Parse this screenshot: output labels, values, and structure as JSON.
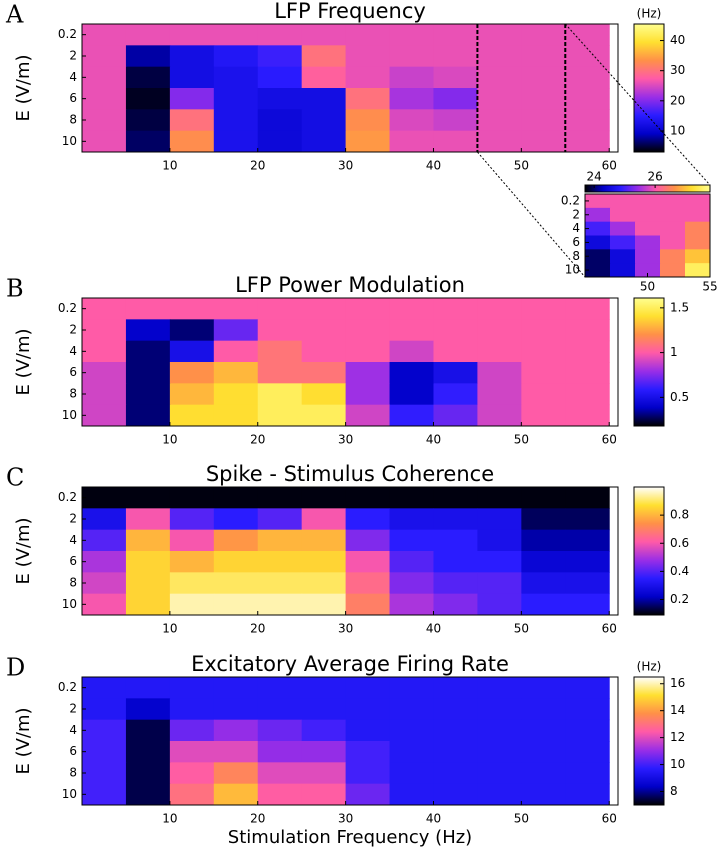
{
  "chart_data": [
    {
      "type": "heatmap",
      "panel": "A",
      "title": "LFP Frequency",
      "y_label": "E (V/m)",
      "x": [
        2.5,
        7.5,
        12.5,
        17.5,
        22.5,
        27.5,
        32.5,
        37.5,
        42.5,
        47.5,
        52.5,
        57.5
      ],
      "rows": [
        0.2,
        2,
        4,
        6,
        8,
        10
      ],
      "z": [
        [
          26,
          26,
          26,
          26,
          26,
          26,
          26,
          26,
          26,
          26,
          26,
          26
        ],
        [
          26,
          8,
          12,
          14,
          16,
          30,
          26,
          26,
          26,
          26,
          26,
          26
        ],
        [
          26,
          5,
          12,
          13,
          15,
          28,
          26,
          24,
          25,
          26,
          26,
          26
        ],
        [
          26,
          4,
          20,
          13,
          12,
          12,
          30,
          22,
          20,
          26,
          26,
          26
        ],
        [
          26,
          5,
          30,
          13,
          11,
          12,
          33,
          25,
          24,
          26,
          26,
          26
        ],
        [
          26,
          6,
          33,
          13,
          11,
          12,
          34,
          26,
          26,
          26,
          26,
          26
        ]
      ],
      "xlim": [
        0,
        61
      ],
      "xticks": [
        10,
        20,
        30,
        40,
        50,
        60
      ],
      "clim": [
        3,
        45.5
      ],
      "cticks": [
        10,
        20,
        30,
        40
      ],
      "colorbar_label": "(Hz)",
      "colormap": [
        "#000000",
        "#0000c8",
        "#2a1cff",
        "#9a2ee6",
        "#ff5aa8",
        "#ff9048",
        "#ffe030",
        "#ffff90"
      ],
      "inset": {
        "x": [
          46,
          48,
          50,
          52,
          54
        ],
        "rows": [
          0.2,
          2,
          4,
          6,
          8,
          10
        ],
        "z": [
          [
            26,
            26,
            26,
            26,
            26
          ],
          [
            25.5,
            26,
            26,
            26,
            26
          ],
          [
            25,
            25.5,
            26,
            26,
            26.5
          ],
          [
            24.5,
            25,
            25.5,
            26,
            26.5
          ],
          [
            24,
            24.5,
            25.5,
            26.5,
            27
          ],
          [
            24,
            24.5,
            25.5,
            26.5,
            27.5
          ]
        ],
        "xlim": [
          45,
          55
        ],
        "xticks": [
          50,
          55
        ],
        "clim": [
          23.7,
          27.8
        ],
        "cticks": [
          24,
          26
        ]
      }
    },
    {
      "type": "heatmap",
      "panel": "B",
      "title": "LFP Power Modulation",
      "y_label": "E (V/m)",
      "x": [
        2.5,
        7.5,
        12.5,
        17.5,
        22.5,
        27.5,
        32.5,
        37.5,
        42.5,
        47.5,
        52.5,
        57.5
      ],
      "rows": [
        0.2,
        2,
        4,
        6,
        8,
        10
      ],
      "z": [
        [
          1,
          1,
          1,
          1,
          1,
          1,
          1,
          1,
          1,
          1,
          1,
          1
        ],
        [
          1,
          0.4,
          0.3,
          0.7,
          1,
          1,
          1,
          1,
          1,
          1,
          1,
          1
        ],
        [
          1,
          0.3,
          0.5,
          1,
          1.1,
          1,
          1,
          0.9,
          1,
          1,
          1,
          1
        ],
        [
          0.9,
          0.3,
          1.2,
          1.3,
          1.1,
          1.1,
          0.8,
          0.4,
          0.5,
          0.9,
          1,
          1
        ],
        [
          0.9,
          0.3,
          1.3,
          1.4,
          1.5,
          1.4,
          0.8,
          0.4,
          0.6,
          0.9,
          1,
          1
        ],
        [
          0.9,
          0.3,
          1.4,
          1.4,
          1.5,
          1.5,
          0.9,
          0.6,
          0.7,
          0.9,
          1,
          1
        ]
      ],
      "xlim": [
        0,
        61
      ],
      "xticks": [
        10,
        20,
        30,
        40,
        50,
        60
      ],
      "clim": [
        0.18,
        1.61
      ],
      "cticks": [
        0.5,
        1,
        1.5
      ],
      "colormap": [
        "#000000",
        "#0000c8",
        "#2a1cff",
        "#9a2ee6",
        "#ff5aa8",
        "#ff9048",
        "#ffe030",
        "#ffff90"
      ]
    },
    {
      "type": "heatmap",
      "panel": "C",
      "title": "Spike - Stimulus Coherence",
      "y_label": "E (V/m)",
      "x": [
        2.5,
        7.5,
        12.5,
        17.5,
        22.5,
        27.5,
        32.5,
        37.5,
        42.5,
        47.5,
        52.5,
        57.5
      ],
      "rows": [
        0.2,
        2,
        4,
        6,
        8,
        10
      ],
      "z": [
        [
          0.1,
          0.1,
          0.1,
          0.1,
          0.1,
          0.1,
          0.1,
          0.1,
          0.1,
          0.1,
          0.1,
          0.1
        ],
        [
          0.3,
          0.6,
          0.4,
          0.35,
          0.4,
          0.6,
          0.35,
          0.3,
          0.3,
          0.3,
          0.15,
          0.15
        ],
        [
          0.4,
          0.8,
          0.6,
          0.75,
          0.8,
          0.8,
          0.45,
          0.35,
          0.35,
          0.3,
          0.2,
          0.2
        ],
        [
          0.5,
          0.85,
          0.8,
          0.85,
          0.85,
          0.85,
          0.6,
          0.4,
          0.35,
          0.35,
          0.25,
          0.25
        ],
        [
          0.55,
          0.85,
          0.9,
          0.9,
          0.9,
          0.9,
          0.65,
          0.45,
          0.4,
          0.4,
          0.3,
          0.3
        ],
        [
          0.6,
          0.85,
          0.95,
          0.95,
          0.95,
          0.95,
          0.7,
          0.5,
          0.45,
          0.4,
          0.35,
          0.35
        ]
      ],
      "xlim": [
        0,
        61
      ],
      "xticks": [
        10,
        20,
        30,
        40,
        50,
        60
      ],
      "clim": [
        0.09,
        1
      ],
      "cticks": [
        0.2,
        0.4,
        0.6,
        0.8
      ],
      "colormap": [
        "#000000",
        "#0000c8",
        "#2a1cff",
        "#9a2ee6",
        "#ff5aa8",
        "#ff9048",
        "#ffe030",
        "#ffffff"
      ]
    },
    {
      "type": "heatmap",
      "panel": "D",
      "title": "Excitatory Average Firing Rate",
      "y_label": "E (V/m)",
      "x_label": "Stimulation Frequency (Hz)",
      "x": [
        2.5,
        7.5,
        12.5,
        17.5,
        22.5,
        27.5,
        32.5,
        37.5,
        42.5,
        47.5,
        52.5,
        57.5
      ],
      "rows": [
        0.2,
        2,
        4,
        6,
        8,
        10
      ],
      "z": [
        [
          9.5,
          9.5,
          9.5,
          9.5,
          9.5,
          9.5,
          9.5,
          9.5,
          9.5,
          9.5,
          9.5,
          9.5
        ],
        [
          9.5,
          8.5,
          9.5,
          9.5,
          9.5,
          9.5,
          9.5,
          9.5,
          9.5,
          9.5,
          9.5,
          9.5
        ],
        [
          10,
          7.5,
          10.5,
          11,
          10.5,
          10,
          9.5,
          9.5,
          9.5,
          9.5,
          9.5,
          9.5
        ],
        [
          10,
          7.5,
          12,
          12,
          11,
          11,
          10,
          9.5,
          9.5,
          9.5,
          9.5,
          9.5
        ],
        [
          10,
          7.5,
          12.5,
          13.5,
          12,
          12,
          10,
          9.5,
          9.5,
          9.5,
          9.5,
          9.5
        ],
        [
          10,
          7.5,
          13,
          14.5,
          12.5,
          12.5,
          10.5,
          9.5,
          9.5,
          9.5,
          9.5,
          9.5
        ]
      ],
      "xlim": [
        0,
        61
      ],
      "xticks": [
        10,
        20,
        30,
        40,
        50,
        60
      ],
      "clim": [
        7,
        16.5
      ],
      "cticks": [
        8,
        10,
        12,
        14,
        16
      ],
      "colorbar_label": "(Hz)",
      "colormap": [
        "#000000",
        "#0000c8",
        "#2a1cff",
        "#9a2ee6",
        "#ff5aa8",
        "#ff9048",
        "#ffe030",
        "#ffffff"
      ]
    }
  ]
}
